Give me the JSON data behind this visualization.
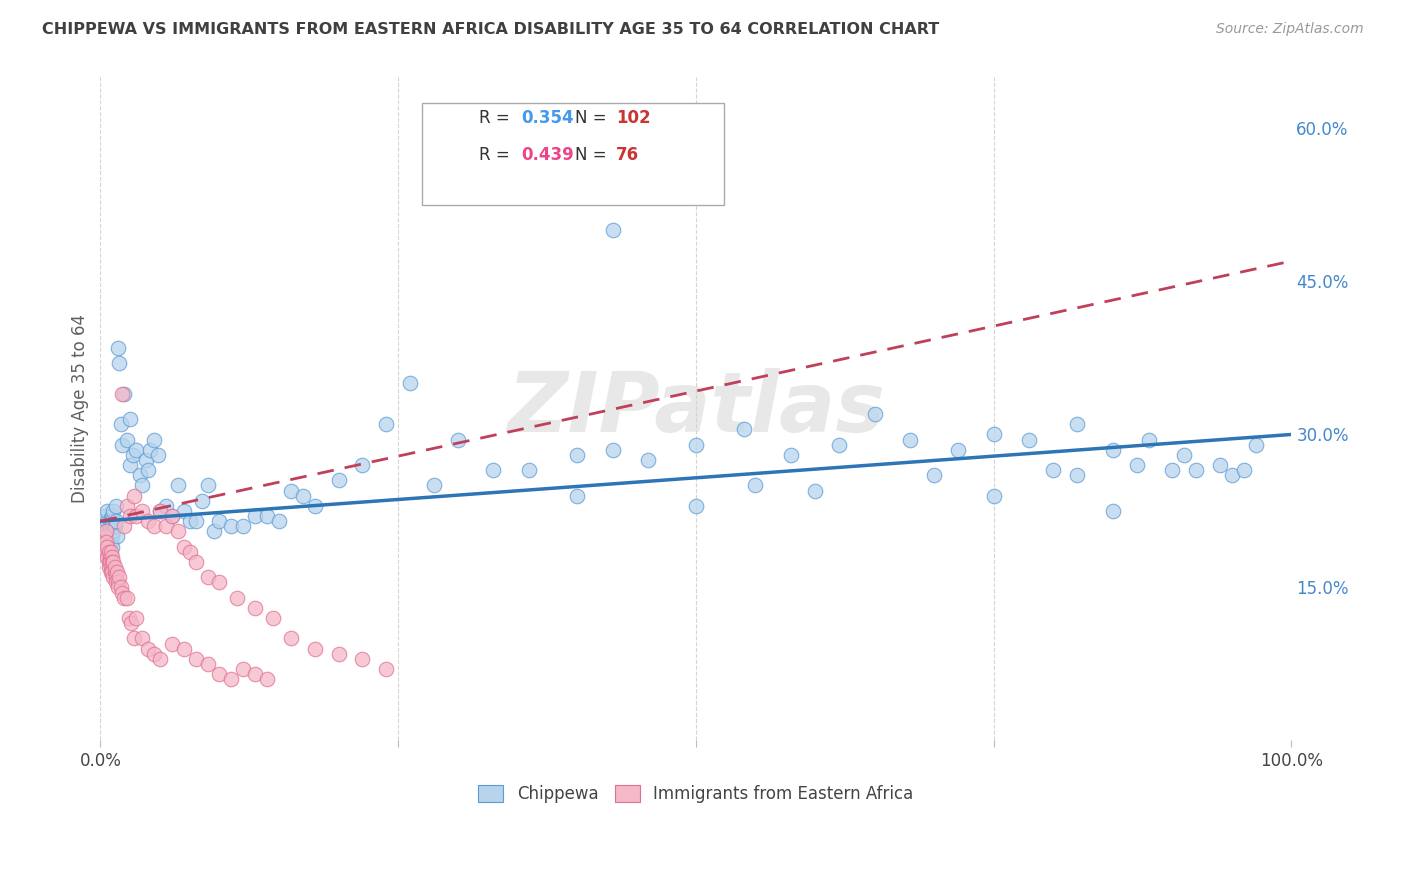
{
  "title": "CHIPPEWA VS IMMIGRANTS FROM EASTERN AFRICA DISABILITY AGE 35 TO 64 CORRELATION CHART",
  "source": "Source: ZipAtlas.com",
  "ylabel": "Disability Age 35 to 64",
  "xlim": [
    0.0,
    1.0
  ],
  "ylim": [
    0.0,
    0.65
  ],
  "yticks": [
    0.15,
    0.3,
    0.45,
    0.6
  ],
  "ytick_labels": [
    "15.0%",
    "30.0%",
    "45.0%",
    "60.0%"
  ],
  "xtick_labels": [
    "0.0%",
    "",
    "",
    "",
    "100.0%"
  ],
  "blue_color": "#b8d4ed",
  "blue_edge_color": "#5b9bd5",
  "blue_line_color": "#2e75b6",
  "pink_color": "#f4b8c8",
  "pink_edge_color": "#e07090",
  "pink_line_color": "#c0405a",
  "background_color": "#ffffff",
  "grid_color": "#d0d0d0",
  "title_color": "#404040",
  "axis_label_color": "#606060",
  "tick_color_y": "#4488cc",
  "watermark_color": "#e8e8e8",
  "legend_box_color": "#ffffff",
  "legend_border_color": "#cccccc",
  "blue_R_text": "0.354",
  "blue_N_text": "102",
  "pink_R_text": "0.439",
  "pink_N_text": "76",
  "blue_R_color": "#4499ee",
  "blue_N_color": "#cc3333",
  "pink_R_color": "#ee4488",
  "pink_N_color": "#cc3333",
  "blue_line_start_y": 0.215,
  "blue_line_end_y": 0.3,
  "pink_line_start_y": 0.215,
  "pink_line_end_y": 0.47,
  "blue_scatter_x": [
    0.003,
    0.004,
    0.005,
    0.005,
    0.006,
    0.006,
    0.007,
    0.007,
    0.007,
    0.008,
    0.008,
    0.009,
    0.009,
    0.01,
    0.01,
    0.01,
    0.01,
    0.01,
    0.011,
    0.011,
    0.012,
    0.013,
    0.013,
    0.014,
    0.015,
    0.016,
    0.017,
    0.018,
    0.02,
    0.022,
    0.025,
    0.025,
    0.027,
    0.03,
    0.033,
    0.035,
    0.038,
    0.04,
    0.042,
    0.045,
    0.048,
    0.05,
    0.055,
    0.06,
    0.065,
    0.07,
    0.075,
    0.08,
    0.085,
    0.09,
    0.095,
    0.1,
    0.11,
    0.12,
    0.13,
    0.14,
    0.15,
    0.16,
    0.17,
    0.18,
    0.2,
    0.22,
    0.24,
    0.26,
    0.28,
    0.3,
    0.33,
    0.36,
    0.4,
    0.43,
    0.46,
    0.5,
    0.54,
    0.58,
    0.62,
    0.65,
    0.68,
    0.72,
    0.75,
    0.78,
    0.82,
    0.85,
    0.88,
    0.91,
    0.94,
    0.97,
    0.4,
    0.5,
    0.55,
    0.6,
    0.7,
    0.8,
    0.85,
    0.9,
    0.92,
    0.95,
    0.75,
    0.82,
    0.87,
    0.96,
    0.38,
    0.43
  ],
  "blue_scatter_y": [
    0.2,
    0.22,
    0.19,
    0.21,
    0.215,
    0.225,
    0.205,
    0.195,
    0.185,
    0.215,
    0.208,
    0.195,
    0.218,
    0.2,
    0.21,
    0.22,
    0.19,
    0.215,
    0.225,
    0.205,
    0.21,
    0.23,
    0.215,
    0.2,
    0.385,
    0.37,
    0.31,
    0.29,
    0.34,
    0.295,
    0.315,
    0.27,
    0.28,
    0.285,
    0.26,
    0.25,
    0.275,
    0.265,
    0.285,
    0.295,
    0.28,
    0.225,
    0.23,
    0.22,
    0.25,
    0.225,
    0.215,
    0.215,
    0.235,
    0.25,
    0.205,
    0.215,
    0.21,
    0.21,
    0.22,
    0.22,
    0.215,
    0.245,
    0.24,
    0.23,
    0.255,
    0.27,
    0.31,
    0.35,
    0.25,
    0.295,
    0.265,
    0.265,
    0.28,
    0.285,
    0.275,
    0.29,
    0.305,
    0.28,
    0.29,
    0.32,
    0.295,
    0.285,
    0.3,
    0.295,
    0.31,
    0.285,
    0.295,
    0.28,
    0.27,
    0.29,
    0.24,
    0.23,
    0.25,
    0.245,
    0.26,
    0.265,
    0.225,
    0.265,
    0.265,
    0.26,
    0.24,
    0.26,
    0.27,
    0.265,
    0.6,
    0.5
  ],
  "pink_scatter_x": [
    0.003,
    0.004,
    0.004,
    0.005,
    0.005,
    0.005,
    0.006,
    0.006,
    0.007,
    0.007,
    0.007,
    0.008,
    0.008,
    0.009,
    0.009,
    0.009,
    0.01,
    0.01,
    0.01,
    0.011,
    0.011,
    0.012,
    0.012,
    0.013,
    0.013,
    0.014,
    0.015,
    0.015,
    0.016,
    0.017,
    0.018,
    0.02,
    0.022,
    0.024,
    0.026,
    0.028,
    0.03,
    0.035,
    0.04,
    0.045,
    0.05,
    0.06,
    0.07,
    0.08,
    0.09,
    0.1,
    0.11,
    0.12,
    0.13,
    0.14,
    0.018,
    0.02,
    0.022,
    0.025,
    0.028,
    0.03,
    0.035,
    0.04,
    0.045,
    0.05,
    0.055,
    0.06,
    0.065,
    0.07,
    0.075,
    0.08,
    0.09,
    0.1,
    0.115,
    0.13,
    0.145,
    0.16,
    0.18,
    0.2,
    0.22,
    0.24
  ],
  "pink_scatter_y": [
    0.195,
    0.2,
    0.19,
    0.205,
    0.185,
    0.195,
    0.18,
    0.19,
    0.175,
    0.185,
    0.17,
    0.18,
    0.175,
    0.185,
    0.17,
    0.165,
    0.18,
    0.175,
    0.165,
    0.175,
    0.16,
    0.165,
    0.17,
    0.16,
    0.155,
    0.165,
    0.155,
    0.15,
    0.16,
    0.15,
    0.145,
    0.14,
    0.14,
    0.12,
    0.115,
    0.1,
    0.12,
    0.1,
    0.09,
    0.085,
    0.08,
    0.095,
    0.09,
    0.08,
    0.075,
    0.065,
    0.06,
    0.07,
    0.065,
    0.06,
    0.34,
    0.21,
    0.23,
    0.22,
    0.24,
    0.22,
    0.225,
    0.215,
    0.21,
    0.225,
    0.21,
    0.22,
    0.205,
    0.19,
    0.185,
    0.175,
    0.16,
    0.155,
    0.14,
    0.13,
    0.12,
    0.1,
    0.09,
    0.085,
    0.08,
    0.07
  ]
}
